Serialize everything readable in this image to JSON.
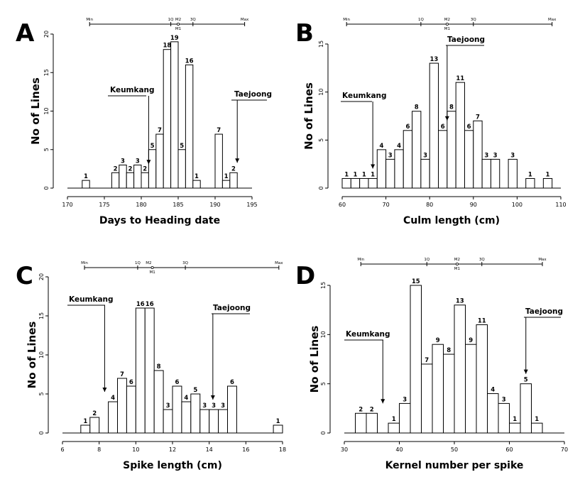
{
  "chart_data": [
    {
      "type": "bar",
      "panel_label": "A",
      "xlabel": "Days to Heading date",
      "ylabel": "No of Lines",
      "xlim": [
        170,
        195
      ],
      "ylim": [
        0,
        20
      ],
      "xticks": [
        170,
        175,
        180,
        185,
        190,
        195
      ],
      "yticks": [
        0,
        5,
        10,
        15,
        20
      ],
      "bin_width": 1,
      "bins": [
        {
          "x": 172.5,
          "value": 1
        },
        {
          "x": 176.5,
          "value": 2
        },
        {
          "x": 177.5,
          "value": 3
        },
        {
          "x": 178.5,
          "value": 2
        },
        {
          "x": 179.5,
          "value": 3
        },
        {
          "x": 180.5,
          "value": 2
        },
        {
          "x": 181.5,
          "value": 5
        },
        {
          "x": 182.5,
          "value": 7
        },
        {
          "x": 183.5,
          "value": 18
        },
        {
          "x": 184.5,
          "value": 19
        },
        {
          "x": 185.5,
          "value": 5
        },
        {
          "x": 186.5,
          "value": 16
        },
        {
          "x": 187.5,
          "value": 1
        },
        {
          "x": 190.5,
          "value": 7
        },
        {
          "x": 191.5,
          "value": 1
        },
        {
          "x": 192.5,
          "value": 2
        }
      ],
      "summary": {
        "min": 173,
        "q1": 184,
        "m2": 185,
        "m1": 185,
        "q3": 187,
        "max": 194
      },
      "summary_labels": {
        "min": "Min",
        "q1": "1Q",
        "m2": "M2",
        "m1": "M1",
        "q3": "3Q",
        "max": "Max"
      },
      "annotations": [
        {
          "text": "Keumkang",
          "x": 181,
          "y": 13
        },
        {
          "text": "Taejoong",
          "x": 193,
          "y": 11.5
        }
      ]
    },
    {
      "type": "bar",
      "panel_label": "B",
      "xlabel": "Culm length (cm)",
      "ylabel": "No of Lines",
      "xlim": [
        60,
        110
      ],
      "ylim": [
        0,
        15
      ],
      "xticks": [
        60,
        70,
        80,
        90,
        100,
        110
      ],
      "yticks": [
        0,
        5,
        10,
        15
      ],
      "bin_width": 2,
      "bins": [
        {
          "x": 61,
          "value": 1
        },
        {
          "x": 63,
          "value": 1
        },
        {
          "x": 65,
          "value": 1
        },
        {
          "x": 67,
          "value": 1
        },
        {
          "x": 69,
          "value": 4
        },
        {
          "x": 71,
          "value": 3
        },
        {
          "x": 73,
          "value": 4
        },
        {
          "x": 75,
          "value": 6
        },
        {
          "x": 77,
          "value": 8
        },
        {
          "x": 79,
          "value": 3
        },
        {
          "x": 81,
          "value": 13
        },
        {
          "x": 83,
          "value": 6
        },
        {
          "x": 85,
          "value": 8
        },
        {
          "x": 87,
          "value": 11
        },
        {
          "x": 89,
          "value": 6
        },
        {
          "x": 91,
          "value": 7
        },
        {
          "x": 93,
          "value": 3
        },
        {
          "x": 95,
          "value": 3
        },
        {
          "x": 99,
          "value": 3
        },
        {
          "x": 103,
          "value": 1
        },
        {
          "x": 107,
          "value": 1
        }
      ],
      "summary": {
        "min": 61,
        "q1": 78,
        "m2": 84,
        "m1": 84,
        "q3": 90,
        "max": 108
      },
      "summary_labels": {
        "min": "Min",
        "q1": "1Q",
        "m2": "M2",
        "m1": "M1",
        "q3": "3Q",
        "max": "Max"
      },
      "annotations": [
        {
          "text": "Keumkang",
          "x": 67,
          "y": 8
        },
        {
          "text": "Taejoong",
          "x": 84,
          "y": 13
        }
      ]
    },
    {
      "type": "bar",
      "panel_label": "C",
      "xlabel": "Spike length (cm)",
      "ylabel": "No of Lines",
      "xlim": [
        6,
        18
      ],
      "ylim": [
        0,
        20
      ],
      "xticks": [
        6,
        8,
        10,
        12,
        14,
        16,
        18
      ],
      "yticks": [
        0,
        5,
        10,
        15,
        20
      ],
      "bin_width": 0.5,
      "bins": [
        {
          "x": 7.25,
          "value": 1
        },
        {
          "x": 7.75,
          "value": 2
        },
        {
          "x": 8.75,
          "value": 4
        },
        {
          "x": 9.25,
          "value": 7
        },
        {
          "x": 9.75,
          "value": 6
        },
        {
          "x": 10.25,
          "value": 16
        },
        {
          "x": 10.75,
          "value": 16
        },
        {
          "x": 11.25,
          "value": 8
        },
        {
          "x": 11.75,
          "value": 3
        },
        {
          "x": 12.25,
          "value": 6
        },
        {
          "x": 12.75,
          "value": 4
        },
        {
          "x": 13.25,
          "value": 5
        },
        {
          "x": 13.75,
          "value": 3
        },
        {
          "x": 14.25,
          "value": 3
        },
        {
          "x": 14.75,
          "value": 3
        },
        {
          "x": 15.25,
          "value": 6
        },
        {
          "x": 17.75,
          "value": 1
        }
      ],
      "summary": {
        "min": 7.2,
        "q1": 10.1,
        "m2": 10.7,
        "m1": 10.9,
        "q3": 12.7,
        "max": 17.8
      },
      "summary_labels": {
        "min": "Min",
        "q1": "1Q",
        "m2": "M2",
        "m1": "M1",
        "q3": "3Q",
        "max": "Max"
      },
      "annotations": [
        {
          "text": "Keumkang",
          "x": 8.3,
          "y": 16.5
        },
        {
          "text": "Taejoong",
          "x": 14.2,
          "y": 15.8
        }
      ]
    },
    {
      "type": "bar",
      "panel_label": "D",
      "xlabel": "Kernel number per spike",
      "ylabel": "No of Lines",
      "xlim": [
        30,
        70
      ],
      "ylim": [
        0,
        15
      ],
      "xticks": [
        30,
        40,
        50,
        60,
        70
      ],
      "yticks": [
        0,
        5,
        10,
        15
      ],
      "bin_width": 2,
      "bins": [
        {
          "x": 33,
          "value": 2
        },
        {
          "x": 35,
          "value": 2
        },
        {
          "x": 39,
          "value": 1
        },
        {
          "x": 41,
          "value": 3
        },
        {
          "x": 43,
          "value": 15
        },
        {
          "x": 45,
          "value": 7
        },
        {
          "x": 47,
          "value": 9
        },
        {
          "x": 49,
          "value": 8
        },
        {
          "x": 51,
          "value": 13
        },
        {
          "x": 53,
          "value": 9
        },
        {
          "x": 55,
          "value": 11
        },
        {
          "x": 57,
          "value": 4
        },
        {
          "x": 59,
          "value": 3
        },
        {
          "x": 61,
          "value": 1
        },
        {
          "x": 63,
          "value": 5
        },
        {
          "x": 65,
          "value": 1
        }
      ],
      "summary": {
        "min": 33,
        "q1": 45,
        "m2": 50.5,
        "m1": 50.5,
        "q3": 55,
        "max": 66
      },
      "summary_labels": {
        "min": "Min",
        "q1": "1Q",
        "m2": "M2",
        "m1": "M1",
        "q3": "3Q",
        "max": "Max"
      },
      "annotations": [
        {
          "text": "Keumkang",
          "x": 37,
          "y": 10
        },
        {
          "text": "Taejoong",
          "x": 63,
          "y": 12
        }
      ]
    }
  ]
}
